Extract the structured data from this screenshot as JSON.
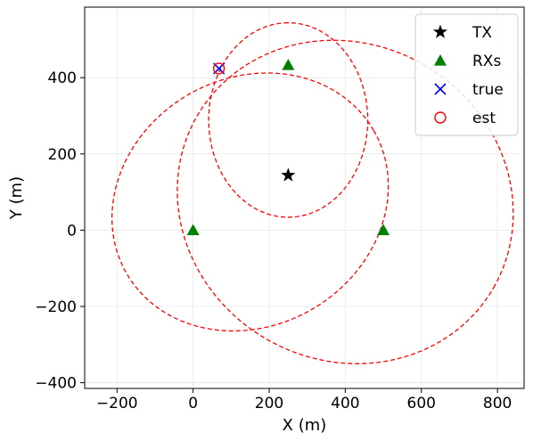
{
  "chart_data": {
    "type": "scatter",
    "title": "",
    "xlabel": "X (m)",
    "ylabel": "Y (m)",
    "xlim": [
      -285,
      870
    ],
    "ylim": [
      -415,
      585
    ],
    "xticks": [
      -200,
      0,
      200,
      400,
      600,
      800
    ],
    "yticks": [
      -400,
      -200,
      0,
      200,
      400
    ],
    "xtick_labels": [
      "−200",
      "0",
      "200",
      "400",
      "600",
      "800"
    ],
    "ytick_labels": [
      "−400",
      "−200",
      "0",
      "200",
      "400"
    ],
    "grid": true,
    "legend_position": "top-right",
    "series": [
      {
        "name": "TX",
        "marker": "star",
        "color": "#000000",
        "points": [
          [
            250,
            144
          ]
        ]
      },
      {
        "name": "RXs",
        "marker": "triangle",
        "color": "#008000",
        "points": [
          [
            0,
            0
          ],
          [
            500,
            0
          ],
          [
            250,
            433
          ]
        ]
      },
      {
        "name": "true",
        "marker": "x",
        "color": "#0000ff",
        "points": [
          [
            68,
            424
          ]
        ]
      },
      {
        "name": "est",
        "marker": "circle-open",
        "color": "#ff0000",
        "points": [
          [
            68,
            424
          ]
        ]
      }
    ],
    "ellipses": [
      {
        "center": [
          250,
          289
        ],
        "semi_major": 255,
        "semi_minor": 209,
        "rotation_deg": 90,
        "color": "#ff0000",
        "style": "dashed"
      },
      {
        "center": [
          150,
          74
        ],
        "semi_major": 375,
        "semi_minor": 325,
        "rotation_deg": 30,
        "color": "#ff0000",
        "style": "dashed"
      },
      {
        "center": [
          400,
          74
        ],
        "semi_major": 450,
        "semi_minor": 415,
        "rotation_deg": -30,
        "color": "#ff0000",
        "style": "dashed"
      }
    ]
  }
}
